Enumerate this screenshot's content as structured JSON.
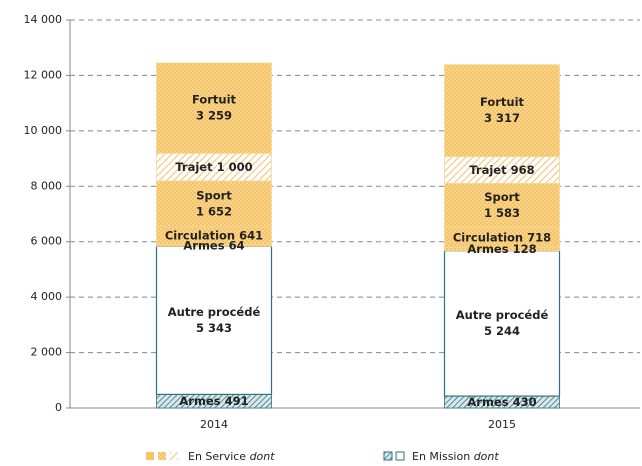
{
  "chart_data": {
    "type": "stacked_bar",
    "categories": [
      "2014",
      "2015"
    ],
    "ylim": [
      0,
      14000
    ],
    "yticks": [
      0,
      {
        "value": 2000,
        "label": "2 000"
      },
      {
        "value": 4000,
        "label": "4 000"
      },
      {
        "value": 6000,
        "label": "6 000"
      },
      {
        "value": 8000,
        "label": "8 000"
      },
      {
        "value": 10000,
        "label": "10 000"
      },
      {
        "value": 12000,
        "label": "12 000"
      },
      {
        "value": 14000,
        "label": "14 000"
      }
    ],
    "grid": true,
    "series": [
      {
        "name": "Armes",
        "color": "#2f7282",
        "pattern": "hatch",
        "values": [
          491,
          430
        ]
      },
      {
        "name": "Autre procédé",
        "color": "#2f7282",
        "pattern": "outline",
        "values": [
          5343,
          5244
        ],
        "value_labels": [
          "5 343",
          "5 244"
        ]
      },
      {
        "name": "Armes",
        "color": "#f2b84b",
        "pattern": "dots",
        "values": [
          64,
          128
        ]
      },
      {
        "name": "Circulation",
        "color": "#f2b84b",
        "pattern": "dots",
        "values": [
          641,
          718
        ]
      },
      {
        "name": "Sport",
        "color": "#f2b84b",
        "pattern": "dots",
        "values": [
          1652,
          1583
        ],
        "value_labels": [
          "1 652",
          "1 583"
        ]
      },
      {
        "name": "Trajet",
        "color": "#f2b84b",
        "pattern": "hatch",
        "values": [
          1000,
          968
        ],
        "value_labels": [
          "1 000",
          "968"
        ]
      },
      {
        "name": "Fortuit",
        "color": "#f2b84b",
        "pattern": "dots",
        "values": [
          3259,
          3317
        ],
        "value_labels": [
          "3 259",
          "3 317"
        ]
      }
    ],
    "legend": [
      {
        "label": "En Service",
        "suffix": "dont"
      },
      {
        "label": "En Mission",
        "suffix": "dont"
      }
    ]
  }
}
